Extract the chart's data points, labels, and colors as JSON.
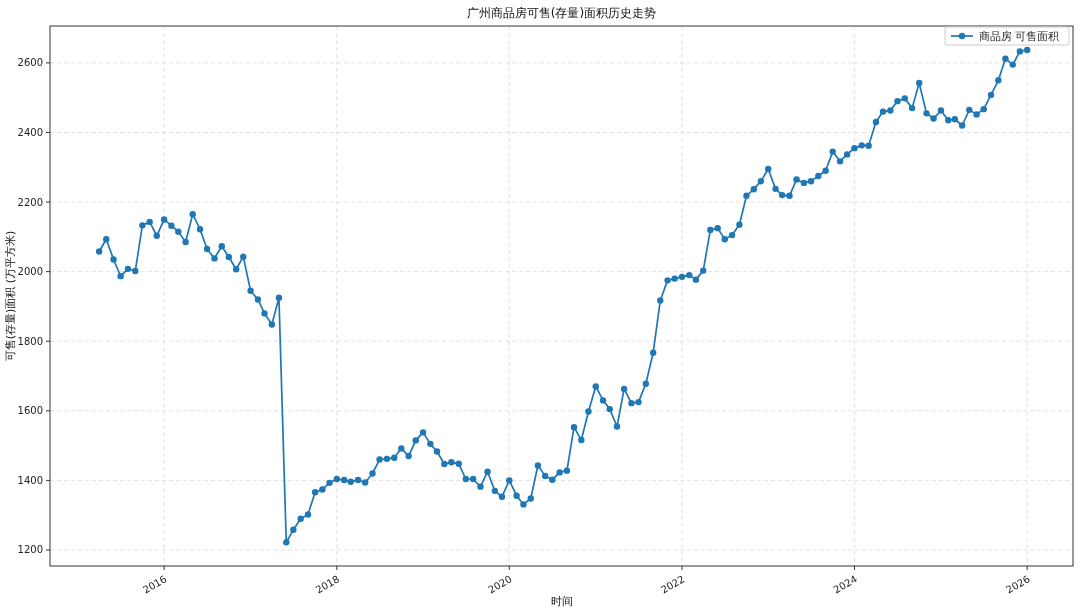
{
  "chart_data": {
    "type": "line",
    "title": "广州商品房可售(存量)面积历史走势",
    "xlabel": "时间",
    "ylabel": "可售(存量)面积 (万平方米)",
    "x": [
      "2015-04",
      "2015-05",
      "2015-06",
      "2015-07",
      "2015-08",
      "2015-09",
      "2015-10",
      "2015-11",
      "2015-12",
      "2016-01",
      "2016-02",
      "2016-03",
      "2016-04",
      "2016-05",
      "2016-06",
      "2016-07",
      "2016-08",
      "2016-09",
      "2016-10",
      "2016-11",
      "2016-12",
      "2017-01",
      "2017-02",
      "2017-03",
      "2017-04",
      "2017-05",
      "2017-06",
      "2017-07",
      "2017-08",
      "2017-09",
      "2017-10",
      "2017-11",
      "2017-12",
      "2018-01",
      "2018-02",
      "2018-03",
      "2018-04",
      "2018-05",
      "2018-06",
      "2018-07",
      "2018-08",
      "2018-09",
      "2018-10",
      "2018-11",
      "2018-12",
      "2019-01",
      "2019-02",
      "2019-03",
      "2019-04",
      "2019-05",
      "2019-06",
      "2019-07",
      "2019-08",
      "2019-09",
      "2019-10",
      "2019-11",
      "2019-12",
      "2020-01",
      "2020-02",
      "2020-03",
      "2020-04",
      "2020-05",
      "2020-06",
      "2020-07",
      "2020-08",
      "2020-09",
      "2020-10",
      "2020-11",
      "2020-12",
      "2021-01",
      "2021-02",
      "2021-03",
      "2021-04",
      "2021-05",
      "2021-06",
      "2021-07",
      "2021-08",
      "2021-09",
      "2021-10",
      "2021-11",
      "2021-12",
      "2022-01",
      "2022-02",
      "2022-03",
      "2022-04",
      "2022-05",
      "2022-06",
      "2022-07",
      "2022-08",
      "2022-09",
      "2022-10",
      "2022-11",
      "2022-12",
      "2023-01",
      "2023-02",
      "2023-03",
      "2023-04",
      "2023-05",
      "2023-06",
      "2023-07",
      "2023-08",
      "2023-09",
      "2023-10",
      "2023-11",
      "2023-12",
      "2024-01",
      "2024-02",
      "2024-03",
      "2024-04",
      "2024-05",
      "2024-06",
      "2024-07",
      "2024-08",
      "2024-09",
      "2024-10",
      "2024-11",
      "2024-12",
      "2025-01",
      "2025-02",
      "2025-03",
      "2025-04",
      "2025-05",
      "2025-06",
      "2025-07",
      "2025-08",
      "2025-09",
      "2025-10",
      "2025-11",
      "2025-12",
      "2026-01"
    ],
    "series": [
      {
        "name": "商品房 可售面积",
        "color": "#1f77b4",
        "values": [
          2058,
          2093,
          2035,
          1987,
          2008,
          2002,
          2133,
          2143,
          2103,
          2150,
          2132,
          2115,
          2085,
          2165,
          2122,
          2065,
          2038,
          2073,
          2042,
          2007,
          2043,
          1945,
          1920,
          1880,
          1848,
          1925,
          1222,
          1258,
          1290,
          1302,
          1366,
          1374,
          1393,
          1404,
          1401,
          1396,
          1401,
          1394,
          1420,
          1460,
          1462,
          1465,
          1492,
          1470,
          1515,
          1538,
          1505,
          1483,
          1447,
          1452,
          1448,
          1404,
          1404,
          1382,
          1425,
          1370,
          1353,
          1400,
          1356,
          1331,
          1348,
          1443,
          1413,
          1402,
          1423,
          1428,
          1553,
          1516,
          1598,
          1670,
          1630,
          1605,
          1555,
          1663,
          1622,
          1625,
          1678,
          1767,
          1917,
          1975,
          1980,
          1985,
          1990,
          1977,
          2003,
          2120,
          2125,
          2093,
          2105,
          2135,
          2218,
          2237,
          2260,
          2295,
          2238,
          2220,
          2218,
          2265,
          2255,
          2260,
          2275,
          2290,
          2345,
          2317,
          2337,
          2355,
          2363,
          2362,
          2430,
          2460,
          2463,
          2490,
          2498,
          2470,
          2542,
          2455,
          2440,
          2463,
          2435,
          2438,
          2420,
          2465,
          2452,
          2467,
          2508,
          2550,
          2612,
          2595,
          2633,
          2637
        ]
      }
    ],
    "xlim": [
      "2014-09-05",
      "2026-07-14"
    ],
    "xticks": [
      "2016",
      "2018",
      "2020",
      "2022",
      "2024",
      "2026"
    ],
    "ylim": [
      1154,
      2706
    ],
    "yticks": [
      1200,
      1400,
      1600,
      1800,
      2000,
      2200,
      2400,
      2600
    ],
    "grid": true,
    "legend": "top right",
    "marker": "circle",
    "line_style": "solid"
  }
}
